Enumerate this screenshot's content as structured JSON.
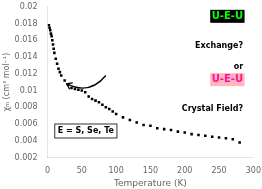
{
  "chart_data": {
    "type": "scatter",
    "xlabel": "Temperature (K)",
    "ylabel": "χₘ (cm³ mol⁻¹)",
    "x": [
      2,
      3,
      4,
      5,
      6,
      7,
      8,
      9,
      10,
      12,
      14,
      16,
      18,
      20,
      25,
      30,
      35,
      40,
      45,
      50,
      55,
      60,
      65,
      70,
      75,
      80,
      85,
      90,
      95,
      100,
      110,
      120,
      130,
      140,
      150,
      160,
      170,
      180,
      190,
      200,
      210,
      220,
      230,
      240,
      250,
      260,
      270,
      280
    ],
    "values": [
      0.0178,
      0.0175,
      0.0172,
      0.0168,
      0.0165,
      0.016,
      0.0155,
      0.015,
      0.0145,
      0.0138,
      0.0132,
      0.0126,
      0.0122,
      0.0118,
      0.0112,
      0.0107,
      0.0103,
      0.0102,
      0.0101,
      0.01,
      0.0098,
      0.0093,
      0.009,
      0.0088,
      0.0086,
      0.0083,
      0.008,
      0.0078,
      0.0075,
      0.0072,
      0.0068,
      0.0065,
      0.0062,
      0.0059,
      0.0058,
      0.0055,
      0.0054,
      0.0053,
      0.0051,
      0.005,
      0.0048,
      0.0047,
      0.0046,
      0.0045,
      0.0044,
      0.0043,
      0.0042,
      0.0038
    ],
    "color": "#000000",
    "marker": "square",
    "xlim": [
      0,
      300
    ],
    "xticks": [
      0,
      50,
      100,
      150,
      200,
      250,
      300
    ],
    "ylim": [
      0.002,
      0.02
    ],
    "yticks": [
      0.002,
      0.004,
      0.006,
      0.008,
      0.01,
      0.012,
      0.014,
      0.016,
      0.018,
      0.02
    ],
    "grid": false,
    "annotations": [
      {
        "text": "U-E-U",
        "color": "#00ff00",
        "background": "#000000"
      },
      {
        "text": "Exchange?",
        "color": "#000000"
      },
      {
        "text": "or",
        "color": "#000000"
      },
      {
        "text": "U-E-U",
        "color": "#ff1493",
        "background": "#ffb6c1"
      },
      {
        "text": "Crystal Field?",
        "color": "#000000"
      },
      {
        "text": "E = S, Se, Te",
        "color": "#000000",
        "background": "#ffffff",
        "border": "#000000"
      }
    ],
    "arrows": [
      {
        "from": {
          "x": 85,
          "y": 0.0118
        },
        "to": {
          "x": 28,
          "y": 0.0108
        }
      }
    ]
  }
}
